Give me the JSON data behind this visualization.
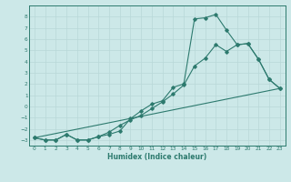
{
  "xlabel": "Humidex (Indice chaleur)",
  "ylabel": "",
  "bg_color": "#cce8e8",
  "grid_color": "#b8d8d8",
  "line_color": "#2d7a6e",
  "xlim": [
    -0.5,
    23.5
  ],
  "ylim": [
    -3.5,
    9.0
  ],
  "xticks": [
    0,
    1,
    2,
    3,
    4,
    5,
    6,
    7,
    8,
    9,
    10,
    11,
    12,
    13,
    14,
    15,
    16,
    17,
    18,
    19,
    20,
    21,
    22,
    23
  ],
  "yticks": [
    -3,
    -2,
    -1,
    0,
    1,
    2,
    3,
    4,
    5,
    6,
    7,
    8
  ],
  "line1_x": [
    0,
    1,
    2,
    3,
    4,
    5,
    6,
    7,
    8,
    9,
    10,
    11,
    12,
    13,
    14,
    15,
    16,
    17,
    18,
    19,
    20,
    21,
    22,
    23
  ],
  "line1_y": [
    -2.8,
    -3.0,
    -3.0,
    -2.5,
    -3.0,
    -3.0,
    -2.7,
    -2.5,
    -2.2,
    -1.1,
    -0.4,
    0.2,
    0.5,
    1.7,
    2.0,
    7.8,
    7.9,
    8.2,
    6.8,
    5.5,
    5.6,
    4.2,
    2.4,
    1.6
  ],
  "line2_x": [
    0,
    1,
    2,
    3,
    4,
    5,
    6,
    7,
    8,
    9,
    10,
    11,
    12,
    13,
    14,
    15,
    16,
    17,
    18,
    19,
    20,
    21,
    22,
    23
  ],
  "line2_y": [
    -2.8,
    -3.0,
    -3.0,
    -2.5,
    -3.0,
    -3.0,
    -2.7,
    -2.3,
    -1.7,
    -1.2,
    -0.8,
    -0.2,
    0.4,
    1.1,
    1.9,
    3.6,
    4.3,
    5.5,
    4.9,
    5.5,
    5.6,
    4.2,
    2.4,
    1.6
  ],
  "line3_x": [
    0,
    23
  ],
  "line3_y": [
    -2.8,
    1.6
  ]
}
